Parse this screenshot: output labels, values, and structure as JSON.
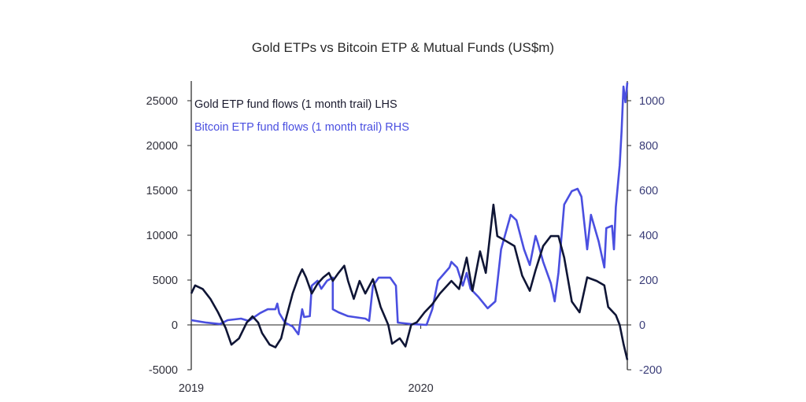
{
  "chart_data": {
    "type": "line",
    "title": "Gold ETPs vs Bitcoin ETP & Mutual Funds (US$m)",
    "x_unit": "months since Jan 2019",
    "xlim": [
      0,
      22.8
    ],
    "x_ticks": [
      {
        "value": 0,
        "label": "2019"
      },
      {
        "value": 12,
        "label": "2020"
      }
    ],
    "y_left": {
      "lim": [
        -5000,
        27000
      ],
      "ticks": [
        -5000,
        0,
        5000,
        10000,
        15000,
        20000,
        25000
      ]
    },
    "y_right": {
      "lim": [
        -200,
        1080
      ],
      "ticks": [
        -200,
        0,
        200,
        400,
        600,
        800,
        1000
      ]
    },
    "grid": false,
    "legend_position": "top-left",
    "colors": {
      "gold": "#0f1535",
      "bitcoin": "#4a4fe0",
      "zero_line": "#222222"
    },
    "series": [
      {
        "name": "Gold ETP fund flows (1 month trail) LHS",
        "axis": "left",
        "points": [
          [
            0,
            3500
          ],
          [
            0.2,
            4400
          ],
          [
            0.6,
            4000
          ],
          [
            1.0,
            2900
          ],
          [
            1.4,
            1400
          ],
          [
            1.8,
            -350
          ],
          [
            2.1,
            -2200
          ],
          [
            2.5,
            -1500
          ],
          [
            2.9,
            260
          ],
          [
            3.2,
            960
          ],
          [
            3.5,
            260
          ],
          [
            3.7,
            -900
          ],
          [
            4.1,
            -2200
          ],
          [
            4.4,
            -2500
          ],
          [
            4.7,
            -1500
          ],
          [
            4.9,
            300
          ],
          [
            5.3,
            3500
          ],
          [
            5.6,
            5300
          ],
          [
            5.8,
            6200
          ],
          [
            6.0,
            5300
          ],
          [
            6.3,
            3500
          ],
          [
            6.6,
            4600
          ],
          [
            6.9,
            5300
          ],
          [
            7.2,
            5800
          ],
          [
            7.4,
            4900
          ],
          [
            7.7,
            5800
          ],
          [
            8.0,
            6600
          ],
          [
            8.2,
            4900
          ],
          [
            8.5,
            2900
          ],
          [
            8.8,
            4900
          ],
          [
            9.1,
            3500
          ],
          [
            9.5,
            5100
          ],
          [
            9.9,
            2000
          ],
          [
            10.3,
            0
          ],
          [
            10.5,
            -2100
          ],
          [
            10.9,
            -1500
          ],
          [
            11.2,
            -2400
          ],
          [
            11.5,
            0
          ],
          [
            11.8,
            300
          ],
          [
            12.2,
            1400
          ],
          [
            12.6,
            2300
          ],
          [
            13.0,
            3500
          ],
          [
            13.6,
            4900
          ],
          [
            14.0,
            4000
          ],
          [
            14.4,
            7500
          ],
          [
            14.7,
            3800
          ],
          [
            15.1,
            8200
          ],
          [
            15.4,
            5800
          ],
          [
            15.8,
            13400
          ],
          [
            16.0,
            9900
          ],
          [
            16.5,
            9300
          ],
          [
            16.9,
            8800
          ],
          [
            17.3,
            5500
          ],
          [
            17.7,
            3800
          ],
          [
            18.0,
            6100
          ],
          [
            18.4,
            8800
          ],
          [
            18.8,
            9900
          ],
          [
            19.2,
            9900
          ],
          [
            19.5,
            7500
          ],
          [
            19.9,
            2600
          ],
          [
            20.3,
            1400
          ],
          [
            20.7,
            5300
          ],
          [
            21.2,
            4900
          ],
          [
            21.6,
            4400
          ],
          [
            21.8,
            2000
          ],
          [
            22.2,
            1100
          ],
          [
            22.4,
            0
          ],
          [
            22.6,
            -2100
          ],
          [
            22.8,
            -3900
          ]
        ]
      },
      {
        "name": "Bitcoin ETP fund flows (1 month trail) RHS",
        "axis": "right",
        "points": [
          [
            0,
            21
          ],
          [
            0.8,
            10
          ],
          [
            1.5,
            4
          ],
          [
            1.9,
            21
          ],
          [
            2.6,
            28
          ],
          [
            3.0,
            18
          ],
          [
            3.6,
            53
          ],
          [
            4.0,
            70
          ],
          [
            4.4,
            70
          ],
          [
            4.5,
            95
          ],
          [
            4.6,
            53
          ],
          [
            4.9,
            10
          ],
          [
            5.3,
            -7
          ],
          [
            5.6,
            -42
          ],
          [
            5.8,
            70
          ],
          [
            5.9,
            35
          ],
          [
            6.2,
            39
          ],
          [
            6.3,
            175
          ],
          [
            6.6,
            197
          ],
          [
            6.8,
            161
          ],
          [
            7.1,
            197
          ],
          [
            7.4,
            211
          ],
          [
            7.4,
            70
          ],
          [
            7.7,
            56
          ],
          [
            8.2,
            39
          ],
          [
            9.1,
            28
          ],
          [
            9.3,
            18
          ],
          [
            9.5,
            175
          ],
          [
            9.8,
            211
          ],
          [
            10.4,
            211
          ],
          [
            10.7,
            175
          ],
          [
            10.8,
            10
          ],
          [
            11.5,
            4
          ],
          [
            12.3,
            0
          ],
          [
            12.6,
            70
          ],
          [
            12.9,
            197
          ],
          [
            13.5,
            256
          ],
          [
            13.6,
            281
          ],
          [
            13.9,
            256
          ],
          [
            14.2,
            175
          ],
          [
            14.4,
            232
          ],
          [
            14.6,
            161
          ],
          [
            15.0,
            126
          ],
          [
            15.5,
            74
          ],
          [
            15.9,
            105
          ],
          [
            16.2,
            337
          ],
          [
            16.7,
            491
          ],
          [
            17.0,
            467
          ],
          [
            17.4,
            337
          ],
          [
            17.7,
            267
          ],
          [
            18.0,
            397
          ],
          [
            18.1,
            372
          ],
          [
            18.4,
            281
          ],
          [
            18.8,
            186
          ],
          [
            19.0,
            105
          ],
          [
            19.2,
            232
          ],
          [
            19.5,
            537
          ],
          [
            19.9,
            597
          ],
          [
            20.2,
            607
          ],
          [
            20.4,
            572
          ],
          [
            20.7,
            337
          ],
          [
            20.9,
            491
          ],
          [
            21.3,
            372
          ],
          [
            21.6,
            256
          ],
          [
            21.7,
            432
          ],
          [
            22.0,
            442
          ],
          [
            22.1,
            337
          ],
          [
            22.2,
            526
          ],
          [
            22.4,
            712
          ],
          [
            22.5,
            864
          ],
          [
            22.6,
            1063
          ],
          [
            22.7,
            993
          ],
          [
            22.8,
            1081
          ]
        ]
      }
    ]
  }
}
